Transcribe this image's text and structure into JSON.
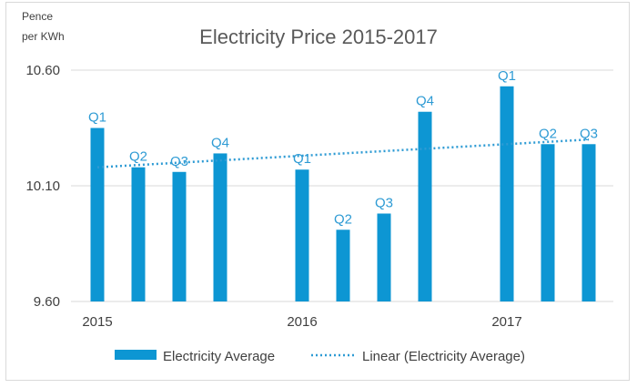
{
  "chart_data": {
    "type": "bar",
    "title": "Electricity Price 2015-2017",
    "ylabel_lines": [
      "Pence",
      "per KWh"
    ],
    "xlabel": "",
    "ylim": [
      9.6,
      10.6
    ],
    "yticks": [
      "10.60",
      "10.10",
      "9.60"
    ],
    "ytick_values": [
      10.6,
      10.1,
      9.6
    ],
    "grid": "horizontal",
    "year_labels": [
      "2015",
      "2016",
      "2017"
    ],
    "series": [
      {
        "name": "Electricity Average",
        "color": "#0d96d3",
        "points": [
          {
            "slot": 0,
            "label": "Q1",
            "year": "2015",
            "value": 10.35
          },
          {
            "slot": 1,
            "label": "Q2",
            "year": "2015",
            "value": 10.18
          },
          {
            "slot": 2,
            "label": "Q3",
            "year": "2015",
            "value": 10.16
          },
          {
            "slot": 3,
            "label": "Q4",
            "year": "2015",
            "value": 10.24
          },
          {
            "slot": 5,
            "label": "Q1",
            "year": "2016",
            "value": 10.17
          },
          {
            "slot": 6,
            "label": "Q2",
            "year": "2016",
            "value": 9.91
          },
          {
            "slot": 7,
            "label": "Q3",
            "year": "2016",
            "value": 9.98
          },
          {
            "slot": 8,
            "label": "Q4",
            "year": "2016",
            "value": 10.42
          },
          {
            "slot": 10,
            "label": "Q1",
            "year": "2017",
            "value": 10.53
          },
          {
            "slot": 11,
            "label": "Q2",
            "year": "2017",
            "value": 10.28
          },
          {
            "slot": 12,
            "label": "Q3",
            "year": "2017",
            "value": 10.28
          }
        ]
      }
    ],
    "trendline": {
      "name": "Linear (Electricity Average)",
      "type": "linear",
      "color": "#2e9bd4",
      "start_value": 10.18,
      "end_value": 10.3
    },
    "legend_position": "bottom",
    "legend": [
      "Electricity Average",
      "Linear (Electricity Average)"
    ]
  }
}
